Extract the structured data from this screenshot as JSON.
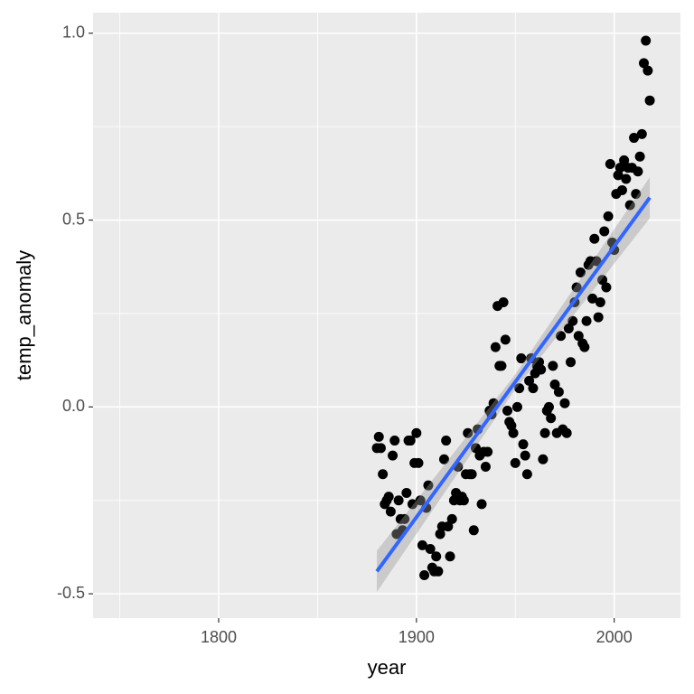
{
  "chart_data": {
    "type": "scatter",
    "x_label": "year",
    "y_label": "temp_anomaly",
    "x": [
      1880,
      1881,
      1882,
      1883,
      1884,
      1885,
      1886,
      1887,
      1888,
      1889,
      1890,
      1891,
      1892,
      1893,
      1894,
      1895,
      1896,
      1897,
      1898,
      1899,
      1900,
      1901,
      1902,
      1903,
      1904,
      1905,
      1906,
      1907,
      1908,
      1909,
      1910,
      1911,
      1912,
      1913,
      1914,
      1915,
      1916,
      1917,
      1918,
      1919,
      1920,
      1921,
      1922,
      1923,
      1924,
      1925,
      1926,
      1927,
      1928,
      1929,
      1930,
      1931,
      1932,
      1933,
      1934,
      1935,
      1936,
      1937,
      1938,
      1939,
      1940,
      1941,
      1942,
      1943,
      1944,
      1945,
      1946,
      1947,
      1948,
      1949,
      1950,
      1951,
      1952,
      1953,
      1954,
      1955,
      1956,
      1957,
      1958,
      1959,
      1960,
      1961,
      1962,
      1963,
      1964,
      1965,
      1966,
      1967,
      1968,
      1969,
      1970,
      1971,
      1972,
      1973,
      1974,
      1975,
      1976,
      1977,
      1978,
      1979,
      1980,
      1981,
      1982,
      1983,
      1984,
      1985,
      1986,
      1987,
      1988,
      1989,
      1990,
      1991,
      1992,
      1993,
      1994,
      1995,
      1996,
      1997,
      1998,
      1999,
      2000,
      2001,
      2002,
      2003,
      2004,
      2005,
      2006,
      2007,
      2008,
      2009,
      2010,
      2011,
      2012,
      2013,
      2014,
      2015,
      2016,
      2017,
      2018
    ],
    "values": [
      -0.11,
      -0.08,
      -0.11,
      -0.18,
      -0.26,
      -0.25,
      -0.24,
      -0.28,
      -0.13,
      -0.09,
      -0.34,
      -0.25,
      -0.3,
      -0.33,
      -0.3,
      -0.23,
      -0.09,
      -0.09,
      -0.26,
      -0.15,
      -0.07,
      -0.15,
      -0.25,
      -0.37,
      -0.45,
      -0.27,
      -0.21,
      -0.38,
      -0.43,
      -0.44,
      -0.4,
      -0.44,
      -0.34,
      -0.32,
      -0.14,
      -0.09,
      -0.32,
      -0.4,
      -0.3,
      -0.25,
      -0.23,
      -0.16,
      -0.25,
      -0.24,
      -0.25,
      -0.18,
      -0.07,
      -0.18,
      -0.18,
      -0.33,
      -0.11,
      -0.06,
      -0.13,
      -0.26,
      -0.12,
      -0.16,
      -0.12,
      -0.01,
      -0.02,
      0.01,
      0.16,
      0.27,
      0.11,
      0.11,
      0.28,
      0.18,
      -0.01,
      -0.04,
      -0.05,
      -0.07,
      -0.15,
      0.0,
      0.05,
      0.13,
      -0.1,
      -0.13,
      -0.18,
      0.07,
      0.13,
      0.05,
      0.09,
      0.11,
      0.12,
      0.1,
      -0.14,
      -0.07,
      -0.01,
      0.0,
      -0.03,
      0.11,
      0.06,
      -0.07,
      0.04,
      0.19,
      -0.06,
      0.01,
      -0.07,
      0.21,
      0.12,
      0.23,
      0.28,
      0.32,
      0.19,
      0.36,
      0.17,
      0.16,
      0.23,
      0.38,
      0.39,
      0.29,
      0.45,
      0.39,
      0.24,
      0.28,
      0.34,
      0.47,
      0.32,
      0.51,
      0.65,
      0.44,
      0.42,
      0.57,
      0.62,
      0.64,
      0.58,
      0.66,
      0.61,
      0.64,
      0.54,
      0.64,
      0.72,
      0.57,
      0.63,
      0.67,
      0.73,
      0.92,
      0.98,
      0.9,
      0.82
    ],
    "color": "#000000",
    "fit": {
      "x": [
        1880,
        1949,
        2018
      ],
      "values": [
        -0.44,
        0.06,
        0.56
      ],
      "lower": [
        -0.495,
        0.04,
        0.505
      ],
      "upper": [
        -0.385,
        0.08,
        0.615
      ],
      "color": "#3366ff",
      "band_color": "#999999"
    },
    "xlim": [
      1736.5,
      2033.5
    ],
    "ylim": [
      -0.565,
      1.055
    ],
    "xticks": [
      1800,
      1900,
      2000
    ],
    "yticks": [
      {
        "value": -0.5,
        "label": "-0.5"
      },
      {
        "value": 0,
        "label": "0.0"
      },
      {
        "value": 0.5,
        "label": "0.5"
      },
      {
        "value": 1,
        "label": "1.0"
      }
    ],
    "minor_xticks": [
      1750,
      1850,
      1950
    ],
    "minor_yticks": [
      -0.25,
      0.25,
      0.75
    ],
    "grid": true
  }
}
